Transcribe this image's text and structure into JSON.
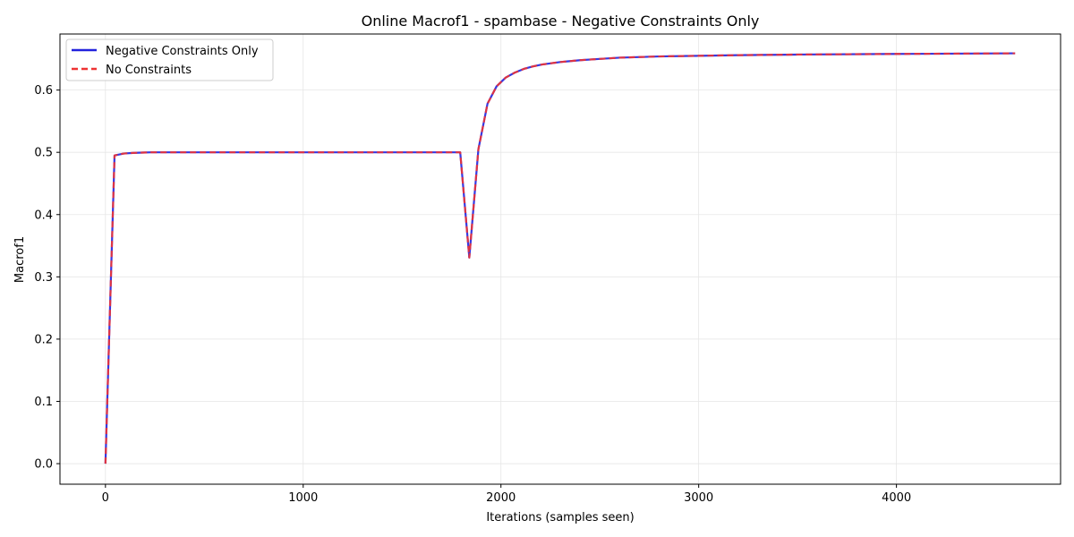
{
  "chart_data": {
    "type": "line",
    "title": "Online Macrof1 - spambase - Negative Constraints Only",
    "xlabel": "Iterations (samples seen)",
    "ylabel": "Macrof1",
    "xlim": [
      -230,
      4830
    ],
    "ylim": [
      -0.033,
      0.69
    ],
    "xticks": [
      0,
      1000,
      2000,
      3000,
      4000
    ],
    "xtick_labels": [
      "0",
      "1000",
      "2000",
      "3000",
      "4000"
    ],
    "yticks": [
      0.0,
      0.1,
      0.2,
      0.3,
      0.4,
      0.5,
      0.6
    ],
    "ytick_labels": [
      "0.0",
      "0.1",
      "0.2",
      "0.3",
      "0.4",
      "0.5",
      "0.6"
    ],
    "grid": true,
    "legend_position": "top-left",
    "series": [
      {
        "name": "Negative Constraints Only",
        "color": "#2222dd",
        "style": "solid",
        "x": [
          0,
          46,
          92,
          138,
          184,
          230,
          500,
          1000,
          1500,
          1794,
          1840,
          1886,
          1932,
          1978,
          2024,
          2070,
          2116,
          2162,
          2208,
          2300,
          2400,
          2500,
          2600,
          2800,
          3000,
          3200,
          3500,
          4000,
          4600
        ],
        "y": [
          0.0,
          0.495,
          0.498,
          0.499,
          0.4995,
          0.5,
          0.5,
          0.5,
          0.5,
          0.5,
          0.331,
          0.505,
          0.578,
          0.606,
          0.62,
          0.628,
          0.634,
          0.638,
          0.641,
          0.645,
          0.648,
          0.65,
          0.652,
          0.654,
          0.655,
          0.656,
          0.657,
          0.658,
          0.659
        ]
      },
      {
        "name": "No Constraints",
        "color": "#ee3333",
        "style": "dashed",
        "x": [
          0,
          46,
          92,
          138,
          184,
          230,
          500,
          1000,
          1500,
          1794,
          1840,
          1886,
          1932,
          1978,
          2024,
          2070,
          2116,
          2162,
          2208,
          2300,
          2400,
          2500,
          2600,
          2800,
          3000,
          3200,
          3500,
          4000,
          4600
        ],
        "y": [
          0.0,
          0.495,
          0.498,
          0.499,
          0.4995,
          0.5,
          0.5,
          0.5,
          0.5,
          0.5,
          0.331,
          0.505,
          0.578,
          0.606,
          0.62,
          0.628,
          0.634,
          0.638,
          0.641,
          0.645,
          0.648,
          0.65,
          0.652,
          0.654,
          0.655,
          0.656,
          0.657,
          0.658,
          0.659
        ]
      }
    ]
  }
}
